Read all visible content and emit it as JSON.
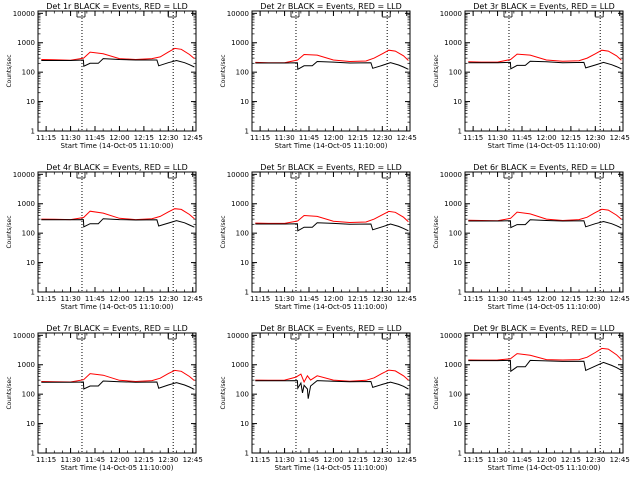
{
  "chart_data": [
    {
      "type": "line",
      "title": "Det 1r BLACK = Events, RED = LLD",
      "xlabel": "Start Time (14-Oct-05 11:10:00)",
      "ylabel": "Counts/sec",
      "x_ticks": [
        "11:15",
        "11:30",
        "11:45",
        "12:00",
        "12:15",
        "12:30",
        "12:45"
      ],
      "y_ticks": [
        "1",
        "10",
        "100",
        "1000",
        "10000"
      ],
      "yscale": "log",
      "ylim": [
        1,
        12000
      ],
      "xlim_minutes": [
        0,
        97
      ],
      "vlines_minutes": [
        27,
        83
      ],
      "series": [
        {
          "color": "#ff0000",
          "x": [
            2,
            10,
            20,
            28,
            32,
            40,
            50,
            60,
            70,
            75,
            80,
            84,
            88,
            93,
            96
          ],
          "values": [
            270,
            265,
            255,
            300,
            480,
            420,
            290,
            270,
            290,
            330,
            480,
            640,
            600,
            400,
            290
          ]
        },
        {
          "color": "#000000",
          "x": [
            2,
            20,
            27.9,
            28.1,
            32,
            37,
            40,
            50,
            60,
            73,
            74.1,
            80,
            85,
            90,
            93,
            96
          ],
          "values": [
            250,
            250,
            260,
            160,
            200,
            200,
            290,
            270,
            260,
            260,
            165,
            210,
            250,
            210,
            180,
            150
          ]
        }
      ]
    },
    {
      "type": "line",
      "title": "Det 2r BLACK = Events, RED = LLD",
      "xlabel": "Start Time (14-Oct-05 11:10:00)",
      "ylabel": "Counts/sec",
      "x_ticks": [
        "11:15",
        "11:30",
        "11:45",
        "12:00",
        "12:15",
        "12:30",
        "12:45"
      ],
      "y_ticks": [
        "1",
        "10",
        "100",
        "1000",
        "10000"
      ],
      "yscale": "log",
      "ylim": [
        1,
        12000
      ],
      "xlim_minutes": [
        0,
        97
      ],
      "vlines_minutes": [
        27,
        83
      ],
      "series": [
        {
          "color": "#ff0000",
          "x": [
            2,
            10,
            20,
            28,
            32,
            40,
            50,
            60,
            70,
            75,
            80,
            84,
            88,
            93,
            96
          ],
          "values": [
            215,
            210,
            210,
            260,
            400,
            380,
            260,
            230,
            240,
            300,
            420,
            560,
            520,
            360,
            250
          ]
        },
        {
          "color": "#000000",
          "x": [
            2,
            20,
            27.9,
            28.1,
            32,
            37,
            40,
            50,
            60,
            73,
            74.1,
            80,
            85,
            90,
            93,
            96
          ],
          "values": [
            205,
            205,
            210,
            125,
            165,
            165,
            230,
            220,
            205,
            210,
            135,
            170,
            210,
            175,
            150,
            125
          ]
        }
      ]
    },
    {
      "type": "line",
      "title": "Det 3r BLACK = Events, RED = LLD",
      "xlabel": "Start Time (14-Oct-05 11:10:00)",
      "ylabel": "Counts/sec",
      "x_ticks": [
        "11:15",
        "11:30",
        "11:45",
        "12:00",
        "12:15",
        "12:30",
        "12:45"
      ],
      "y_ticks": [
        "1",
        "10",
        "100",
        "1000",
        "10000"
      ],
      "yscale": "log",
      "ylim": [
        1,
        12000
      ],
      "xlim_minutes": [
        0,
        97
      ],
      "vlines_minutes": [
        27,
        83
      ],
      "series": [
        {
          "color": "#ff0000",
          "x": [
            2,
            10,
            20,
            28,
            32,
            40,
            50,
            60,
            70,
            75,
            80,
            84,
            88,
            93,
            96
          ],
          "values": [
            225,
            220,
            220,
            270,
            410,
            380,
            260,
            235,
            245,
            300,
            420,
            560,
            520,
            360,
            255
          ]
        },
        {
          "color": "#000000",
          "x": [
            2,
            20,
            27.9,
            28.1,
            32,
            37,
            40,
            50,
            60,
            73,
            74.1,
            80,
            85,
            90,
            93,
            96
          ],
          "values": [
            210,
            210,
            215,
            130,
            170,
            170,
            235,
            225,
            210,
            215,
            140,
            175,
            215,
            180,
            155,
            130
          ]
        }
      ]
    },
    {
      "type": "line",
      "title": "Det 4r BLACK = Events, RED = LLD",
      "xlabel": "Start Time (14-Oct-05 11:10:00)",
      "ylabel": "Counts/sec",
      "x_ticks": [
        "11:15",
        "11:30",
        "11:45",
        "12:00",
        "12:15",
        "12:30",
        "12:45"
      ],
      "y_ticks": [
        "1",
        "10",
        "100",
        "1000",
        "10000"
      ],
      "yscale": "log",
      "ylim": [
        1,
        12000
      ],
      "xlim_minutes": [
        0,
        97
      ],
      "vlines_minutes": [
        27,
        83
      ],
      "series": [
        {
          "color": "#ff0000",
          "x": [
            2,
            10,
            20,
            28,
            32,
            40,
            50,
            60,
            70,
            75,
            80,
            84,
            88,
            93,
            96
          ],
          "values": [
            300,
            295,
            290,
            340,
            560,
            480,
            320,
            290,
            310,
            370,
            530,
            680,
            640,
            430,
            310
          ]
        },
        {
          "color": "#000000",
          "x": [
            2,
            20,
            27.9,
            28.1,
            32,
            37,
            40,
            50,
            60,
            73,
            74.1,
            80,
            85,
            90,
            93,
            96
          ],
          "values": [
            285,
            285,
            290,
            165,
            210,
            210,
            310,
            290,
            280,
            285,
            175,
            220,
            265,
            225,
            190,
            160
          ]
        }
      ]
    },
    {
      "type": "line",
      "title": "Det 5r BLACK = Events, RED = LLD",
      "xlabel": "Start Time (14-Oct-05 11:10:00)",
      "ylabel": "Counts/sec",
      "x_ticks": [
        "11:15",
        "11:30",
        "11:45",
        "12:00",
        "12:15",
        "12:30",
        "12:45"
      ],
      "y_ticks": [
        "1",
        "10",
        "100",
        "1000",
        "10000"
      ],
      "yscale": "log",
      "ylim": [
        1,
        12000
      ],
      "xlim_minutes": [
        0,
        97
      ],
      "vlines_minutes": [
        27,
        83
      ],
      "series": [
        {
          "color": "#ff0000",
          "x": [
            2,
            10,
            20,
            28,
            32,
            40,
            50,
            60,
            70,
            75,
            80,
            84,
            88,
            93,
            96
          ],
          "values": [
            220,
            215,
            215,
            260,
            400,
            370,
            255,
            230,
            240,
            300,
            420,
            550,
            510,
            350,
            245
          ]
        },
        {
          "color": "#000000",
          "x": [
            2,
            20,
            27.9,
            28.1,
            32,
            37,
            40,
            50,
            60,
            73,
            74.1,
            80,
            85,
            90,
            93,
            96
          ],
          "values": [
            205,
            205,
            210,
            120,
            160,
            160,
            225,
            215,
            200,
            205,
            130,
            165,
            205,
            170,
            145,
            120
          ]
        }
      ]
    },
    {
      "type": "line",
      "title": "Det 6r BLACK = Events, RED = LLD",
      "xlabel": "Start Time (14-Oct-05 11:10:00)",
      "ylabel": "Counts/sec",
      "x_ticks": [
        "11:15",
        "11:30",
        "11:45",
        "12:00",
        "12:15",
        "12:30",
        "12:45"
      ],
      "y_ticks": [
        "1",
        "10",
        "100",
        "1000",
        "10000"
      ],
      "yscale": "log",
      "ylim": [
        1,
        12000
      ],
      "xlim_minutes": [
        0,
        97
      ],
      "vlines_minutes": [
        27,
        83
      ],
      "series": [
        {
          "color": "#ff0000",
          "x": [
            2,
            10,
            20,
            28,
            32,
            40,
            50,
            60,
            70,
            75,
            80,
            84,
            88,
            93,
            96
          ],
          "values": [
            275,
            270,
            265,
            320,
            520,
            450,
            300,
            270,
            290,
            350,
            500,
            650,
            610,
            410,
            295
          ]
        },
        {
          "color": "#000000",
          "x": [
            2,
            20,
            27.9,
            28.1,
            32,
            37,
            40,
            50,
            60,
            73,
            74.1,
            80,
            85,
            90,
            93,
            96
          ],
          "values": [
            260,
            260,
            265,
            155,
            195,
            195,
            285,
            270,
            260,
            265,
            165,
            210,
            250,
            210,
            180,
            150
          ]
        }
      ]
    },
    {
      "type": "line",
      "title": "Det 7r BLACK = Events, RED = LLD",
      "xlabel": "Start Time (14-Oct-05 11:10:00)",
      "ylabel": "Counts/sec",
      "x_ticks": [
        "11:15",
        "11:30",
        "11:45",
        "12:00",
        "12:15",
        "12:30",
        "12:45"
      ],
      "y_ticks": [
        "1",
        "10",
        "100",
        "1000",
        "10000"
      ],
      "yscale": "log",
      "ylim": [
        1,
        12000
      ],
      "xlim_minutes": [
        0,
        97
      ],
      "vlines_minutes": [
        27,
        83
      ],
      "series": [
        {
          "color": "#ff0000",
          "x": [
            2,
            10,
            20,
            28,
            32,
            40,
            50,
            60,
            70,
            75,
            80,
            84,
            88,
            93,
            96
          ],
          "values": [
            270,
            265,
            260,
            310,
            500,
            440,
            295,
            270,
            290,
            350,
            500,
            640,
            600,
            400,
            290
          ]
        },
        {
          "color": "#000000",
          "x": [
            2,
            20,
            27.9,
            28.1,
            32,
            37,
            40,
            50,
            60,
            73,
            74.1,
            80,
            85,
            90,
            93,
            96
          ],
          "values": [
            255,
            255,
            260,
            150,
            190,
            190,
            280,
            265,
            255,
            260,
            160,
            205,
            245,
            205,
            175,
            145
          ]
        }
      ]
    },
    {
      "type": "line",
      "title": "Det 8r BLACK = Events, RED = LLD",
      "xlabel": "Start Time (14-Oct-05 11:10:00)",
      "ylabel": "Counts/sec",
      "x_ticks": [
        "11:15",
        "11:30",
        "11:45",
        "12:00",
        "12:15",
        "12:30",
        "12:45"
      ],
      "y_ticks": [
        "1",
        "10",
        "100",
        "1000",
        "10000"
      ],
      "yscale": "log",
      "ylim": [
        1,
        12000
      ],
      "xlim_minutes": [
        0,
        97
      ],
      "vlines_minutes": [
        27,
        83
      ],
      "series": [
        {
          "color": "#ff0000",
          "x": [
            2,
            10,
            20,
            27,
            30,
            32,
            34,
            36,
            40,
            50,
            60,
            70,
            75,
            80,
            84,
            88,
            93,
            96
          ],
          "values": [
            300,
            295,
            300,
            380,
            480,
            260,
            420,
            300,
            420,
            300,
            275,
            295,
            360,
            510,
            660,
            620,
            420,
            300
          ]
        },
        {
          "color": "#000000",
          "x": [
            2,
            20,
            27.9,
            28.1,
            30,
            31,
            32,
            34,
            34.5,
            36,
            40,
            50,
            60,
            73,
            74.1,
            80,
            85,
            90,
            93,
            96
          ],
          "values": [
            285,
            285,
            290,
            160,
            240,
            110,
            200,
            150,
            70,
            190,
            290,
            275,
            265,
            270,
            170,
            215,
            255,
            215,
            185,
            150
          ]
        }
      ]
    },
    {
      "type": "line",
      "title": "Det 9r BLACK = Events, RED = LLD",
      "xlabel": "Start Time (14-Oct-05 11:10:00)",
      "ylabel": "Counts/sec",
      "x_ticks": [
        "11:15",
        "11:30",
        "11:45",
        "12:00",
        "12:15",
        "12:30",
        "12:45"
      ],
      "y_ticks": [
        "1",
        "10",
        "100",
        "1000",
        "10000"
      ],
      "yscale": "log",
      "ylim": [
        1,
        12000
      ],
      "xlim_minutes": [
        0,
        97
      ],
      "vlines_minutes": [
        27,
        83
      ],
      "series": [
        {
          "color": "#ff0000",
          "x": [
            2,
            10,
            20,
            28,
            32,
            40,
            50,
            60,
            70,
            75,
            80,
            84,
            88,
            93,
            96
          ],
          "values": [
            1450,
            1440,
            1450,
            1600,
            2400,
            2100,
            1500,
            1450,
            1500,
            1800,
            2600,
            3600,
            3400,
            2200,
            1500
          ]
        },
        {
          "color": "#000000",
          "x": [
            2,
            20,
            27.9,
            28.1,
            32,
            37,
            40,
            50,
            60,
            73,
            74.1,
            80,
            85,
            90,
            93,
            96
          ],
          "values": [
            1380,
            1380,
            1400,
            600,
            850,
            850,
            1400,
            1350,
            1300,
            1320,
            640,
            900,
            1200,
            950,
            800,
            650
          ]
        }
      ]
    }
  ]
}
